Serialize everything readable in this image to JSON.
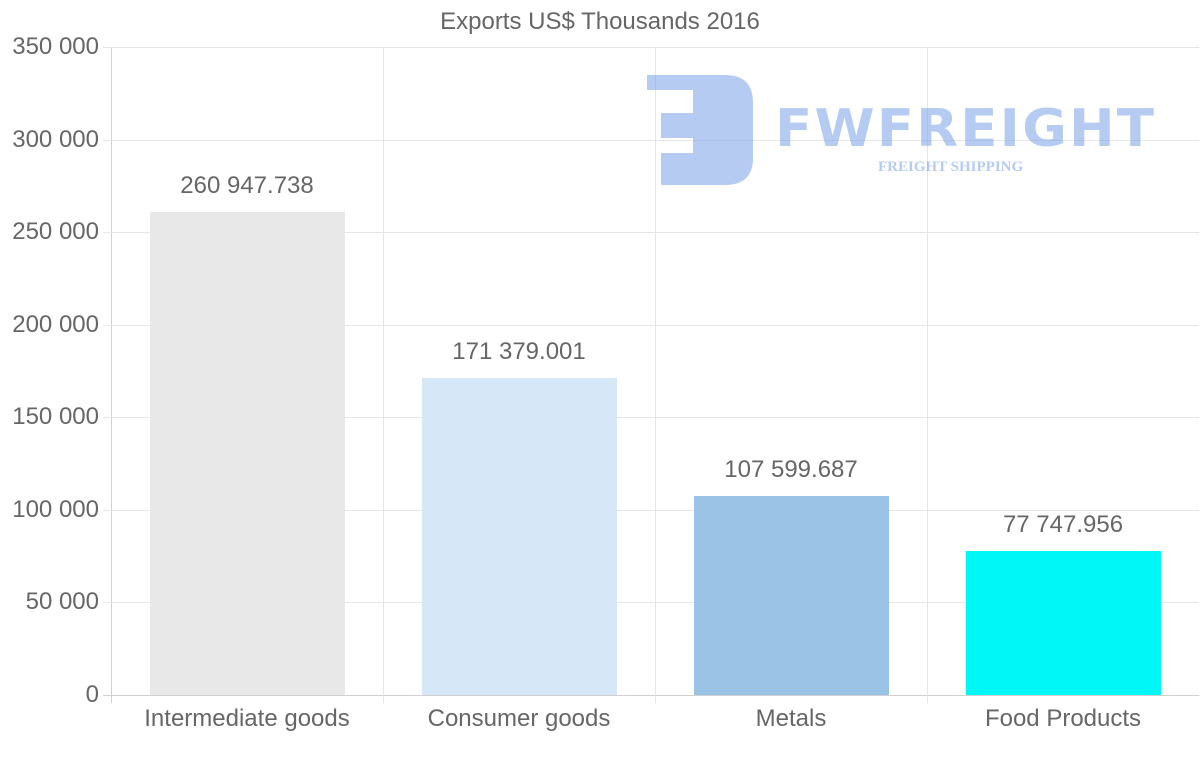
{
  "chart_data": {
    "type": "bar",
    "title": "Exports US$ Thousands 2016",
    "xlabel": "",
    "ylabel": "",
    "categories": [
      "Intermediate goods",
      "Consumer goods",
      "Metals",
      "Food Products"
    ],
    "values": [
      260947.738,
      171379.001,
      107599.687,
      77747.956
    ],
    "value_labels": [
      "260 947.738",
      "171 379.001",
      "107 599.687",
      "77 747.956"
    ],
    "colors": [
      "#e8e8e8",
      "#d6e7f8",
      "#9bc3e6",
      "#00f7f7"
    ],
    "ylim": [
      0,
      350000
    ],
    "yticks": [
      0,
      50000,
      100000,
      150000,
      200000,
      250000,
      300000,
      350000
    ],
    "ytick_labels": [
      "0",
      "50 000",
      "100 000",
      "150 000",
      "200 000",
      "250 000",
      "300 000",
      "350 000"
    ],
    "grid": true,
    "legend": false
  },
  "watermark": {
    "brand": "FWFREIGHT",
    "tagline": "FREIGHT SHIPPING"
  }
}
